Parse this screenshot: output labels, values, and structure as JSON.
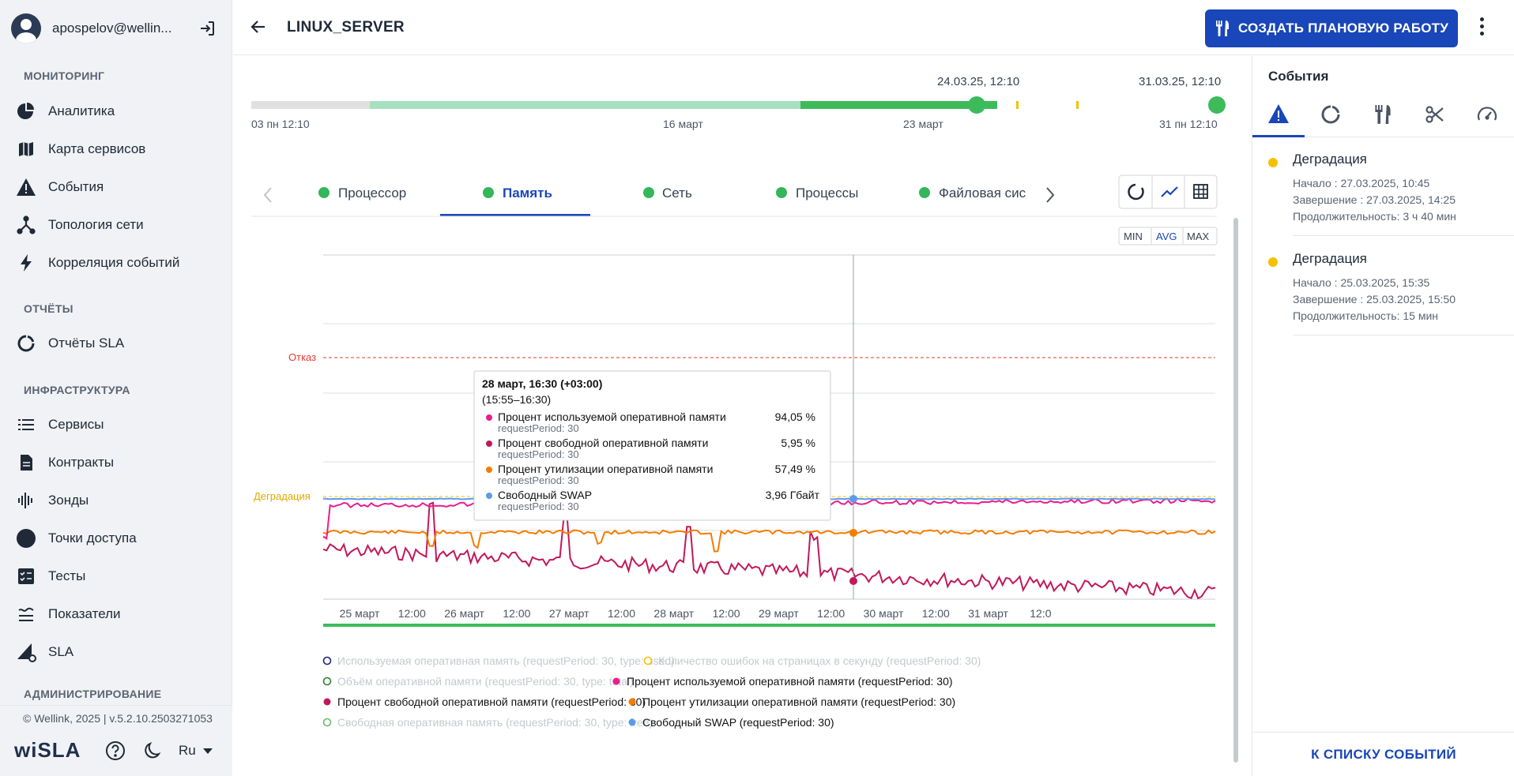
{
  "user": {
    "name": "apospelov@wellin..."
  },
  "nav": {
    "sections": [
      {
        "title": "МОНИТОРИНГ",
        "items": [
          "Аналитика",
          "Карта сервисов",
          "События",
          "Топология сети",
          "Корреляция событий"
        ]
      },
      {
        "title": "ОТЧЁТЫ",
        "items": [
          "Отчёты SLA"
        ]
      },
      {
        "title": "ИНФРАСТРУКТУРА",
        "items": [
          "Сервисы",
          "Контракты",
          "Зонды",
          "Точки доступа",
          "Тесты",
          "Показатели",
          "SLA"
        ]
      },
      {
        "title": "АДМИНИСТРИРОВАНИЕ",
        "items": []
      }
    ]
  },
  "footer": {
    "copyright": "© Wellink, 2025 | v.5.2.10.2503271053",
    "logo": "wiSLA",
    "language": "Ru"
  },
  "header": {
    "title": "LINUX_SERVER",
    "create_button": "СОЗДАТЬ ПЛАНОВУЮ РАБОТУ"
  },
  "timeline": {
    "start_label": "03 пн 12:10",
    "tick1": "16 март",
    "tick2": "23 март",
    "end_label": "31 пн 12:10",
    "range_start": "24.03.25, 12:10",
    "range_end": "31.03.25, 12:10"
  },
  "tabs": [
    {
      "label": "Процессор",
      "status_color": "#34b65a"
    },
    {
      "label": "Память",
      "status_color": "#34b65a",
      "active": true
    },
    {
      "label": "Сеть",
      "status_color": "#34b65a"
    },
    {
      "label": "Процессы",
      "status_color": "#34b65a"
    },
    {
      "label": "Файловая сис",
      "status_color": "#34b65a"
    }
  ],
  "agg_buttons": {
    "min": "MIN",
    "avg": "AVG",
    "max": "MAX",
    "selected": "AVG"
  },
  "chart_data": {
    "type": "line",
    "x_tick_labels": [
      "25 март",
      "12:00",
      "26 март",
      "12:00",
      "27 март",
      "12:00",
      "28 март",
      "12:00",
      "29 март",
      "12:00",
      "30 март",
      "12:00",
      "31 март",
      "12:0"
    ],
    "threshold_labels": {
      "failure": "Отказ",
      "degradation": "Деградация"
    },
    "tooltip": {
      "title": "28 март, 16:30 (+03:00)",
      "period": "(15:55–16:30)",
      "rows": [
        {
          "name": "Процент используемой оперативной памяти",
          "sub": "requestPeriod: 30",
          "value": "94,05 %",
          "color": "#e91e8c"
        },
        {
          "name": "Процент свободной оперативной памяти",
          "sub": "requestPeriod: 30",
          "value": "5,95 %",
          "color": "#c2185b"
        },
        {
          "name": "Процент утилизации оперативной памяти",
          "sub": "requestPeriod: 30",
          "value": "57,49 %",
          "color": "#f57c00"
        },
        {
          "name": "Свободный SWAP",
          "sub": "requestPeriod: 30",
          "value": "3,96 Гбайт",
          "color": "#5b9bea"
        }
      ]
    },
    "legend": [
      {
        "label": "Используемая оперативная память (requestPeriod: 30, type: used)",
        "color": "#1a237e",
        "enabled": false
      },
      {
        "label": "Количество ошибок на страницах в секунду (requestPeriod: 30)",
        "color": "#f5c000",
        "enabled": false
      },
      {
        "label": "Объём оперативной памяти (requestPeriod: 30, type: total)",
        "color": "#2e7d32",
        "enabled": false
      },
      {
        "label": "Процент используемой оперативной памяти (requestPeriod: 30)",
        "color": "#e91e8c",
        "enabled": true
      },
      {
        "label": "Процент свободной оперативной памяти (requestPeriod: 30)",
        "color": "#c2185b",
        "enabled": true
      },
      {
        "label": "Процент утилизации оперативной памяти (requestPeriod: 30)",
        "color": "#f57c00",
        "enabled": true
      },
      {
        "label": "Свободная оперативная память (requestPeriod: 30, type: free)",
        "color": "#66bb6a",
        "enabled": false
      },
      {
        "label": "Свободный SWAP (requestPeriod: 30)",
        "color": "#5b9bea",
        "enabled": true
      }
    ]
  },
  "events_panel": {
    "title": "События",
    "events": [
      {
        "title": "Деградация",
        "start": "Начало : 27.03.2025, 10:45",
        "end": "Завершение : 27.03.2025, 14:25",
        "duration": "Продолжительность: 3 ч 40 мин",
        "color": "#f5c000"
      },
      {
        "title": "Деградация",
        "start": "Начало : 25.03.2025, 15:35",
        "end": "Завершение : 25.03.2025, 15:50",
        "duration": "Продолжительность: 15 мин",
        "color": "#f5c000"
      }
    ],
    "footer_link": "К СПИСКУ СОБЫТИЙ"
  }
}
